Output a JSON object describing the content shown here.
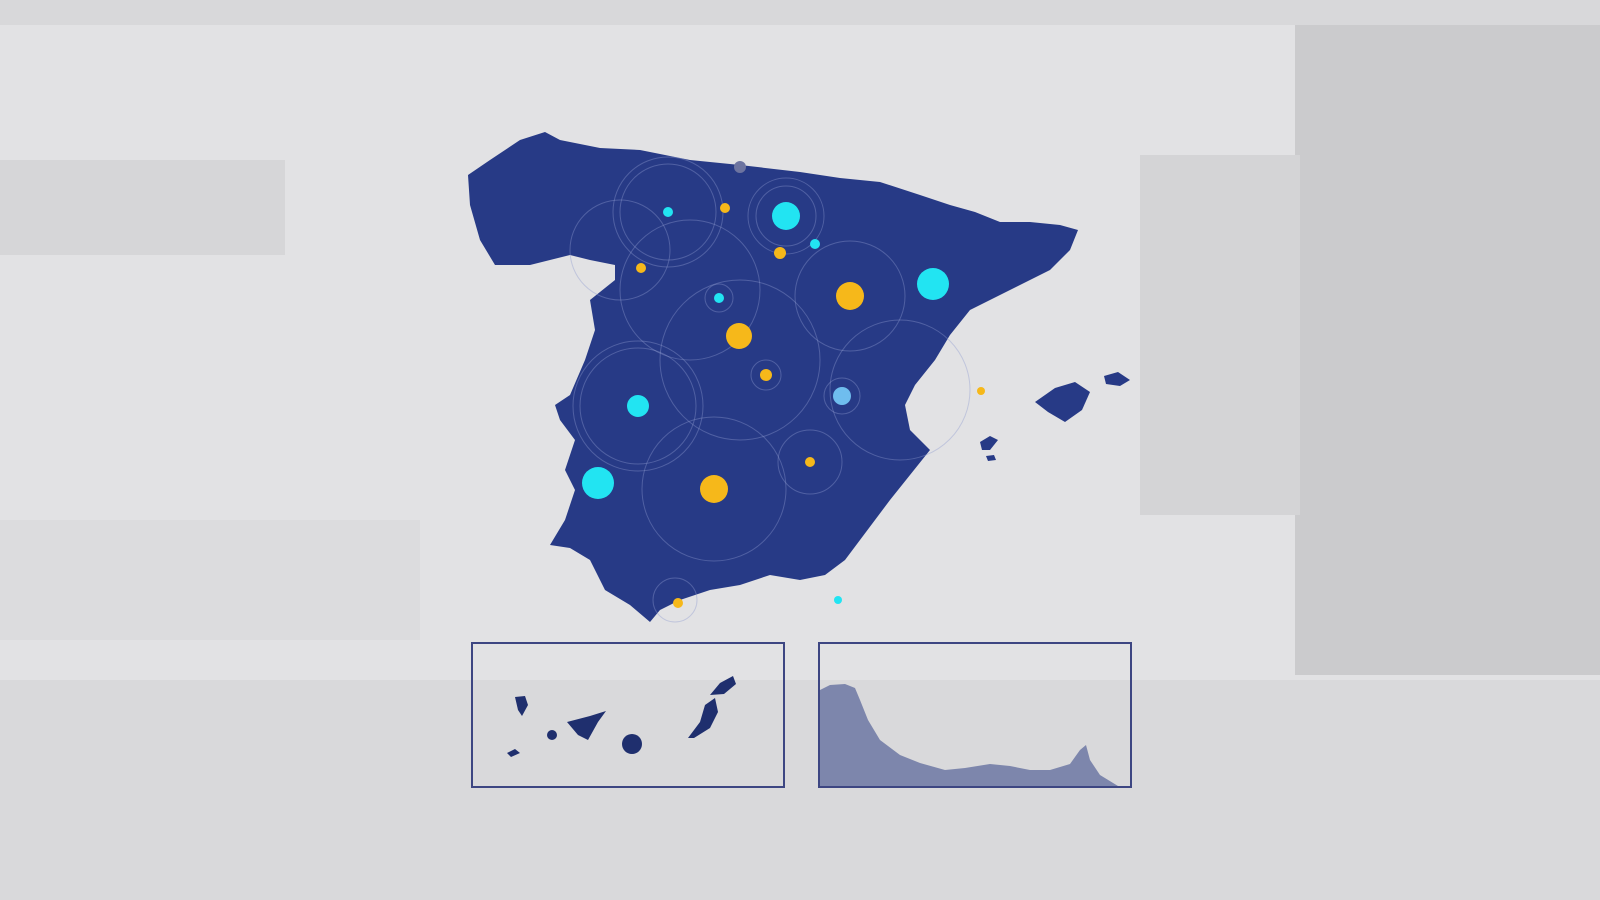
{
  "colors": {
    "background": "#e2e2e4",
    "land": "#273a86",
    "land_inset": "#1f2f6e",
    "ceuta_land": "#7d86ac",
    "marker_cyan": "#22e4f2",
    "marker_yellow": "#f6b81a",
    "marker_lightblue": "#6fbdee",
    "marker_grey": "#6d74a0",
    "inset_border": "#3d4682",
    "ring": "#8e9ad0"
  },
  "icons": [
    "map-marker-cyan",
    "map-marker-yellow"
  ]
}
